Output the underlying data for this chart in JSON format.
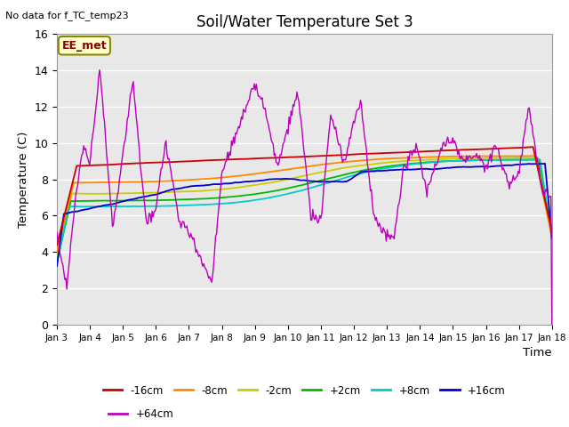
{
  "title": "Soil/Water Temperature Set 3",
  "xlabel": "Time",
  "ylabel": "Temperature (C)",
  "note": "No data for f_TC_temp23",
  "legend_label": "EE_met",
  "ylim": [
    0,
    16
  ],
  "xlim": [
    0,
    15
  ],
  "xtick_labels": [
    "Jan 3",
    "Jan 4",
    "Jan 5",
    "Jan 6",
    "Jan 7",
    "Jan 8",
    "Jan 9",
    "Jan 10",
    "Jan 11",
    "Jan 12",
    "Jan 13",
    "Jan 14",
    "Jan 15",
    "Jan 16",
    "Jan 17",
    "Jan 18"
  ],
  "series_colors": {
    "-16cm": "#cc0000",
    "-8cm": "#ff8800",
    "-2cm": "#cccc00",
    "+2cm": "#00bb00",
    "+8cm": "#00cccc",
    "+16cm": "#0000cc",
    "+64cm": "#bb00bb"
  },
  "bg_color": "#e8e8e8",
  "grid_color": "#ffffff"
}
